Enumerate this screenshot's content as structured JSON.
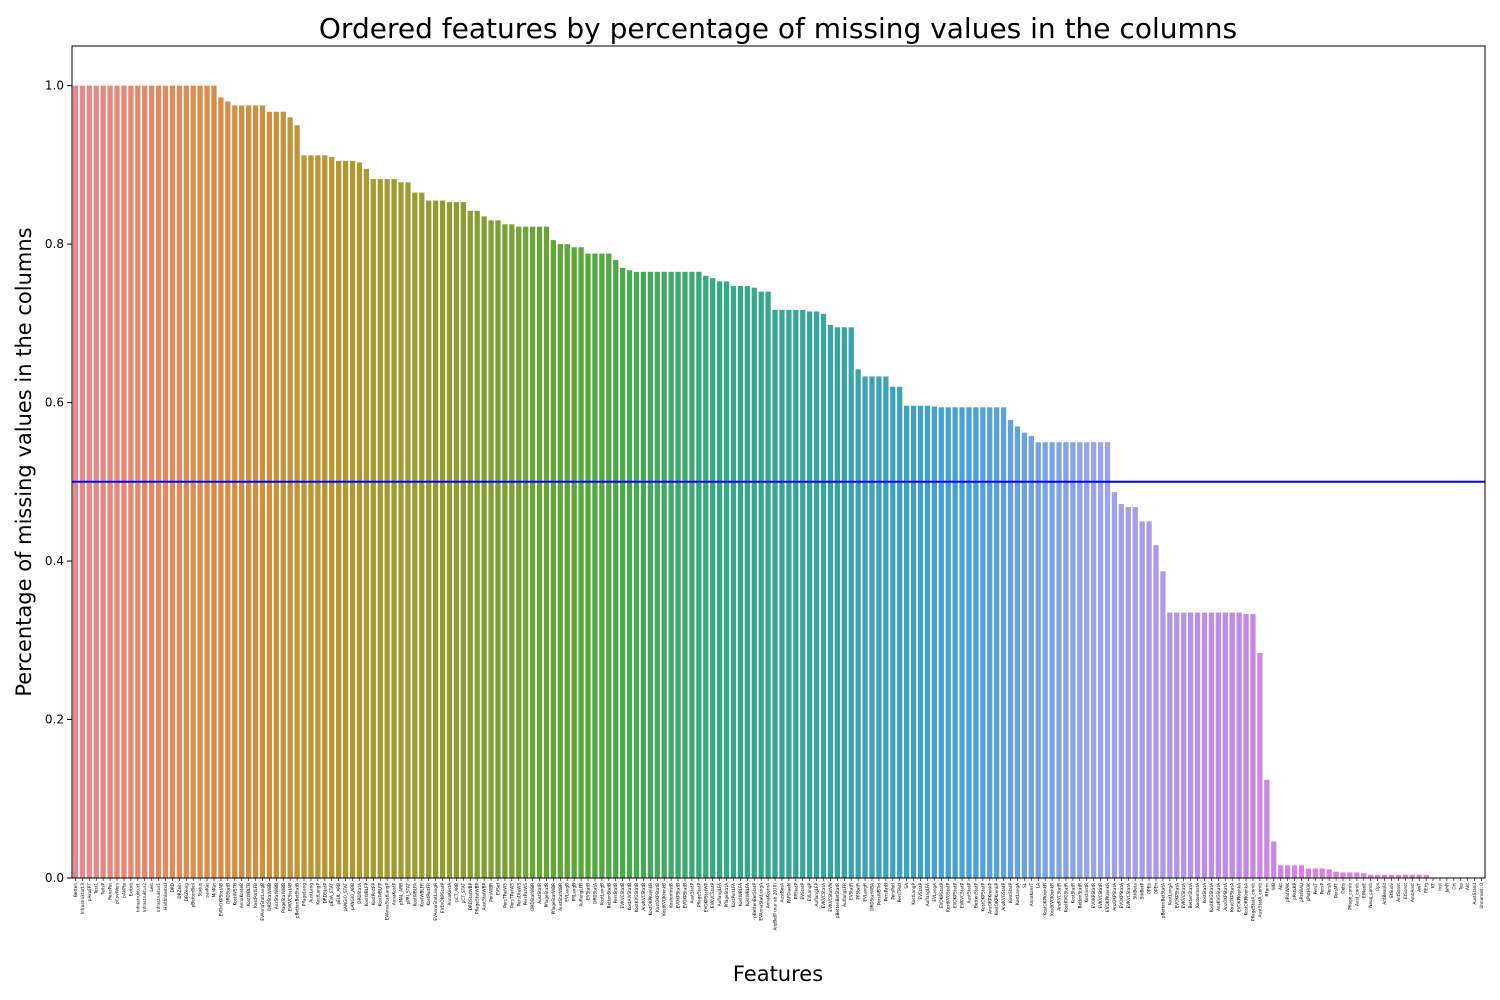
{
  "chart_data": {
    "type": "bar",
    "title": "Ordered features by percentage of missing values in the columns",
    "x_label": "Features",
    "y_label": "Percentage of missing values in the columns",
    "ylim": [
      0,
      1.05
    ],
    "yticks": [
      {
        "value": 0,
        "label": "0.0"
      },
      {
        "value": 0.2,
        "label": "0.2"
      },
      {
        "value": 0.4,
        "label": "0.4"
      },
      {
        "value": 0.6,
        "label": "0.6"
      },
      {
        "value": 0.8,
        "label": "0.8"
      },
      {
        "value": 1,
        "label": "1.0"
      }
    ],
    "hline": {
      "value": 0.5,
      "color": "#0000ff"
    },
    "palette": [
      "#e8878f",
      "#dd8c4c",
      "#b7972f",
      "#8e9d31",
      "#56a83a",
      "#36a981",
      "#38a4a8",
      "#47a0d8",
      "#9aa6ea",
      "#c18ae8",
      "#e27ee0",
      "#ee7fc4"
    ],
    "categories": [
      "Betten",
      "InfrastrukturL3",
      "pAkuEPT",
      "Test1",
      "TeilsP",
      "RenzPat",
      "pCovWers",
      "pAkPte",
      "Exitnb",
      "Infrastruktur1",
      "Infrastruktur2",
      "Lest",
      "Infrastruktur1",
      "HaltbhkeitsU",
      "DRD",
      "DRZeiti",
      "DRZeing",
      "pBettenBeil",
      "Status",
      "pavKat",
      "MinKat",
      "EVDrOKPStatAB",
      "DRDStatB",
      "KostIWSTB",
      "AnnaKosteB",
      "KostWBLTB",
      "KostPortLFB",
      "EVAnnaStatLangB",
      "DRDStatWBB",
      "AnzStatWBB",
      "PlageStatWBB",
      "EVKVCStatAB",
      "pBettenBetStatB",
      "PflageLang",
      "AustLang",
      "KostLangP",
      "DRDStatP",
      "pEVA_STAT",
      "pEUL_ARB",
      "pANGIO_STAT",
      "pANGIO_ARB",
      "DRDStatA",
      "KostWBLFP",
      "KostPortFP",
      "KostWBLFP",
      "EVAnnaStatLangP",
      "AnnaKostP",
      "pMAL_ARB",
      "pPRI_STAT",
      "KostWBLFA",
      "KostWBLFR",
      "KostPortFR",
      "EVAnnaStatLangR",
      "EVDrOKPStatP",
      "AnnaKostA",
      "pCT_ARB",
      "pCT_STAT",
      "DRDStatWBP",
      "PflageStatWBP",
      "AustStatWBP",
      "PersWBR",
      "EVSef",
      "PersTPatWS",
      "PersTPatWS",
      "PersDtaWS",
      "PersPatWS",
      "DRDStatWBR",
      "AustStatR",
      "PflageStatR",
      "PflageStatWBR",
      "AustStatWBR",
      "EVLangB",
      "PflLangB",
      "AuflangLFB",
      "EVStatB",
      "DRDStatA",
      "KostLangB",
      "BettenStatB",
      "PersStatB",
      "EVKVCStatB",
      "KostAIVStatB",
      "KostKVGStatB",
      "AnzKVCStatB",
      "KostOKPKrenkB",
      "KostOKPStatB",
      "KostKVGKrenkB",
      "KostenInstB",
      "EVOKPStatB",
      "EVOKPStatB",
      "AustStatP",
      "PflageStatP",
      "EVOKPStatWP",
      "EVKVCStatP",
      "AuflangLFA",
      "PflageStatA",
      "KostPortLFA",
      "KostWBLFA",
      "KostWBLFA",
      "pBettenBetStatP",
      "EVAnnaStatLangA",
      "AnnaKostnA",
      "AnzBetP (nur ab 2010)",
      "AustBetA",
      "PAFDiaeN",
      "PflStatP",
      "EVStatP",
      "EVLangP",
      "AuflangLFP",
      "EVKVCStatA",
      "EVKVCStatVN",
      "pBettenBetStatR",
      "AuflangLFR",
      "EVStatR",
      "PflStatR",
      "EVLangR",
      "DRDStatWBA",
      "PersWBTrd",
      "PersPatB",
      "PersPatI",
      "PersTPatI",
      "SA",
      "KostLangP",
      "EVStatP",
      "AuflangLFA",
      "EVLangA",
      "EVOKPStatP",
      "KostKVGStatP",
      "EVOKPStatP",
      "EVKVCStatP",
      "AustStatP",
      "BettenStatP",
      "KostOKPStatP",
      "AnzOKPKrenkP",
      "KostOKPKrenkP",
      "AnzKVGStatP",
      "KostStatP",
      "KostLangA",
      "SL",
      "AnnaKonsT",
      "LA",
      "KostOKPKrenkR",
      "KostKVGKrenkR",
      "AnzKVCStatR",
      "KostKVGStatR",
      "KostStatR",
      "BettenStatR",
      "KostinstR",
      "EVOKPStatR",
      "EVKVCStatR",
      "EVOKPKrenkR",
      "AnzOKPStatA",
      "EVOKPStatA",
      "EVKVCStatA",
      "StkBeta",
      "StkBetP",
      "OPEb",
      "OPEn",
      "pBettenBetStatA",
      "KostLangA",
      "EVOKPStatA",
      "EVKVCStatA",
      "BettenStatA",
      "KostenInstA",
      "KostStatA",
      "KostKVGStatA",
      "AnzKVGStatA",
      "AnzOKPStatA",
      "KostOKPStatA",
      "EVOKPKrenkA",
      "KostOKPKrenkA",
      "PflageStatA_comb",
      "AustStatA_comb",
      "RForm",
      "WB",
      "Akt",
      "pPatWAK",
      "pPatLKP",
      "pPatWAU",
      "pPatHOK",
      "PersT",
      "PersP",
      "PersA",
      "PersMT",
      "Gebs",
      "Pflage_comb",
      "Aust_comb",
      "EINeoE",
      "Neug_comb",
      "Ops",
      "AntBeanld",
      "EtSudv",
      "AntSonst",
      "EtSonst",
      "AmbAnst",
      "AwT",
      "RErg",
      "KT",
      "Inst",
      "JahR",
      "Ort",
      "Typ",
      "Akt",
      "AustStand",
      "Unnamed: 0"
    ],
    "values": [
      1,
      1,
      1,
      1,
      1,
      1,
      1,
      1,
      1,
      1,
      1,
      1,
      1,
      1,
      1,
      1,
      1,
      1,
      1,
      1,
      1,
      0.985,
      0.98,
      0.975,
      0.975,
      0.975,
      0.975,
      0.975,
      0.967,
      0.967,
      0.967,
      0.96,
      0.95,
      0.912,
      0.912,
      0.912,
      0.912,
      0.91,
      0.905,
      0.905,
      0.905,
      0.903,
      0.895,
      0.882,
      0.882,
      0.882,
      0.882,
      0.878,
      0.878,
      0.865,
      0.865,
      0.855,
      0.855,
      0.855,
      0.853,
      0.853,
      0.853,
      0.842,
      0.842,
      0.835,
      0.83,
      0.83,
      0.825,
      0.825,
      0.822,
      0.822,
      0.822,
      0.822,
      0.822,
      0.805,
      0.8,
      0.8,
      0.796,
      0.796,
      0.788,
      0.788,
      0.788,
      0.788,
      0.78,
      0.77,
      0.767,
      0.765,
      0.765,
      0.765,
      0.765,
      0.765,
      0.765,
      0.765,
      0.765,
      0.765,
      0.765,
      0.76,
      0.757,
      0.753,
      0.753,
      0.747,
      0.747,
      0.747,
      0.745,
      0.74,
      0.74,
      0.717,
      0.717,
      0.717,
      0.717,
      0.717,
      0.715,
      0.715,
      0.712,
      0.698,
      0.695,
      0.695,
      0.695,
      0.642,
      0.633,
      0.633,
      0.633,
      0.633,
      0.62,
      0.62,
      0.596,
      0.596,
      0.596,
      0.596,
      0.595,
      0.594,
      0.594,
      0.594,
      0.594,
      0.594,
      0.594,
      0.594,
      0.594,
      0.594,
      0.594,
      0.578,
      0.57,
      0.562,
      0.558,
      0.55,
      0.55,
      0.55,
      0.55,
      0.55,
      0.55,
      0.55,
      0.55,
      0.55,
      0.55,
      0.55,
      0.487,
      0.472,
      0.468,
      0.468,
      0.45,
      0.45,
      0.42,
      0.387,
      0.335,
      0.335,
      0.335,
      0.335,
      0.335,
      0.335,
      0.335,
      0.335,
      0.335,
      0.335,
      0.335,
      0.333,
      0.333,
      0.284,
      0.124,
      0.046,
      0.016,
      0.016,
      0.016,
      0.016,
      0.012,
      0.012,
      0.012,
      0.011,
      0.008,
      0.007,
      0.007,
      0.007,
      0.006,
      0.004,
      0.004,
      0.004,
      0.004,
      0.004,
      0.004,
      0.004,
      0.004,
      0.004,
      0,
      0,
      0,
      0,
      0,
      0,
      0,
      0
    ]
  }
}
